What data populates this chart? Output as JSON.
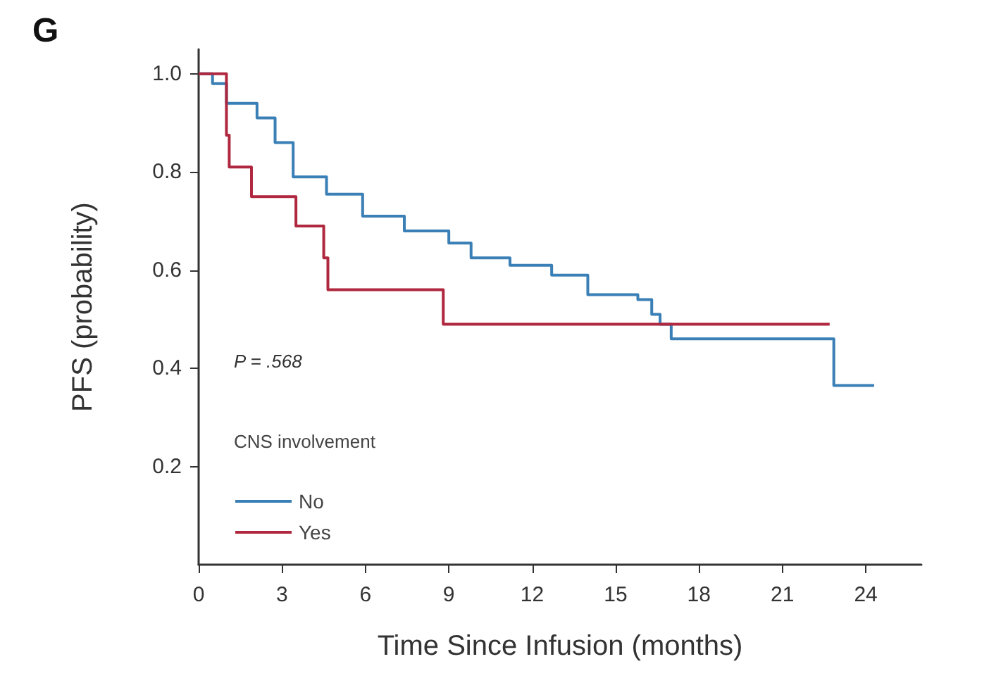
{
  "chart_data": {
    "type": "step",
    "title": "G",
    "xlabel": "Time Since Infusion (months)",
    "ylabel": "PFS (probability)",
    "xlim": [
      0,
      26
    ],
    "xticks": [
      0,
      3,
      6,
      9,
      12,
      15,
      18,
      21,
      24
    ],
    "ylim": [
      0,
      1.05
    ],
    "yticks": [
      0.2,
      0.4,
      0.6,
      0.8,
      {
        "value": 1,
        "label": "1.0"
      }
    ],
    "legend": "bottom left",
    "legend_title": "CNS involvement",
    "annotations": [
      "P = .568"
    ],
    "grid": false,
    "marker": "none",
    "line_style": "solid",
    "series": [
      {
        "name": "No",
        "color": "#3a7fb5",
        "x": [
          0,
          0.5,
          1.0,
          2.1,
          2.75,
          3.4,
          4.6,
          5.9,
          7.4,
          9.0,
          9.8,
          11.2,
          12.7,
          14.0,
          15.8,
          16.3,
          16.6,
          17.0,
          22.85,
          24.3
        ],
        "values": [
          1.0,
          0.98,
          0.94,
          0.91,
          0.86,
          0.79,
          0.755,
          0.71,
          0.68,
          0.655,
          0.625,
          0.61,
          0.59,
          0.55,
          0.54,
          0.51,
          0.49,
          0.46,
          0.365,
          0.365
        ]
      },
      {
        "name": "Yes",
        "color": "#b0283f",
        "x": [
          0,
          1.0,
          1.1,
          1.9,
          3.5,
          4.5,
          4.65,
          8.8,
          22.7
        ],
        "values": [
          1.0,
          0.875,
          0.81,
          0.75,
          0.69,
          0.625,
          0.56,
          0.49,
          0.49
        ]
      }
    ]
  }
}
